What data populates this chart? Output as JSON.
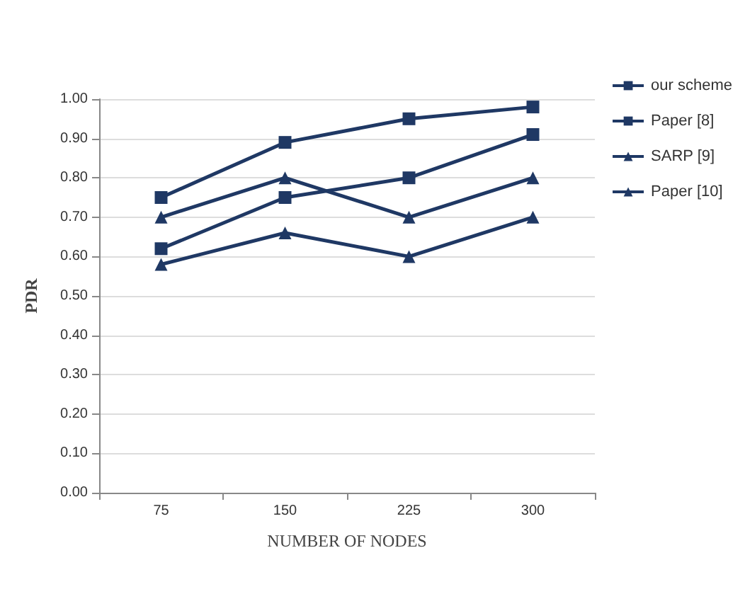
{
  "chart_data": {
    "type": "line",
    "xlabel": "NUMBER OF NODES",
    "ylabel": "PDR",
    "categories": [
      "75",
      "150",
      "225",
      "300"
    ],
    "series": [
      {
        "name": "our scheme",
        "color": "#1f3864",
        "marker": "square",
        "values": [
          0.75,
          0.89,
          0.95,
          0.98
        ]
      },
      {
        "name": "Paper [8]",
        "color": "#1f3864",
        "marker": "square",
        "values": [
          0.62,
          0.75,
          0.8,
          0.91
        ]
      },
      {
        "name": "SARP [9]",
        "color": "#1f3864",
        "marker": "triangle",
        "values": [
          0.7,
          0.8,
          0.7,
          0.8
        ]
      },
      {
        "name": "Paper [10]",
        "color": "#1f3864",
        "marker": "triangle",
        "values": [
          0.58,
          0.66,
          0.6,
          0.7
        ]
      }
    ],
    "ylim": [
      0,
      1
    ],
    "yticks": [
      {
        "value": 0,
        "label": "0.00"
      },
      {
        "value": 0.1,
        "label": "0.10"
      },
      {
        "value": 0.2,
        "label": "0.20"
      },
      {
        "value": 0.3,
        "label": "0.30"
      },
      {
        "value": 0.4,
        "label": "0.40"
      },
      {
        "value": 0.5,
        "label": "0.50"
      },
      {
        "value": 0.6,
        "label": "0.60"
      },
      {
        "value": 0.7,
        "label": "0.70"
      },
      {
        "value": 0.8,
        "label": "0.80"
      },
      {
        "value": 0.9,
        "label": "0.90"
      },
      {
        "value": 1,
        "label": "1.00"
      }
    ],
    "grid": "y",
    "legend": "right",
    "line_style": "solid"
  }
}
